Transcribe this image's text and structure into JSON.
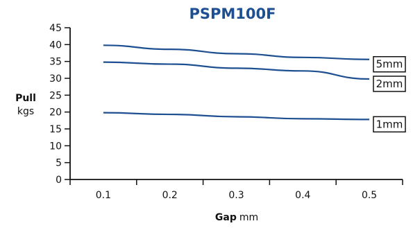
{
  "chart_data": {
    "type": "line",
    "title": "PSPM100F",
    "xlabel": {
      "bold": "Gap",
      "unit": "mm"
    },
    "ylabel": {
      "bold": "Pull",
      "unit": "kgs"
    },
    "x": [
      0.1,
      0.2,
      0.3,
      0.4,
      0.5
    ],
    "x_tick_labels": [
      "0.1",
      "0.2",
      "0.3",
      "0.4",
      "0.5"
    ],
    "xlim": [
      0.05,
      0.55
    ],
    "ylim": [
      0,
      45
    ],
    "y_ticks": [
      0,
      5,
      10,
      15,
      20,
      25,
      30,
      35,
      40,
      45
    ],
    "grid": false,
    "line_color": "#1d4f91",
    "title_color": "#1d4f91",
    "series": [
      {
        "name": "5mm",
        "values": [
          39.8,
          38.6,
          37.3,
          36.2,
          35.6
        ]
      },
      {
        "name": "2mm",
        "values": [
          34.8,
          34.2,
          33.0,
          32.2,
          29.8
        ]
      },
      {
        "name": "1mm",
        "values": [
          19.8,
          19.3,
          18.6,
          18.0,
          17.8
        ]
      }
    ]
  }
}
